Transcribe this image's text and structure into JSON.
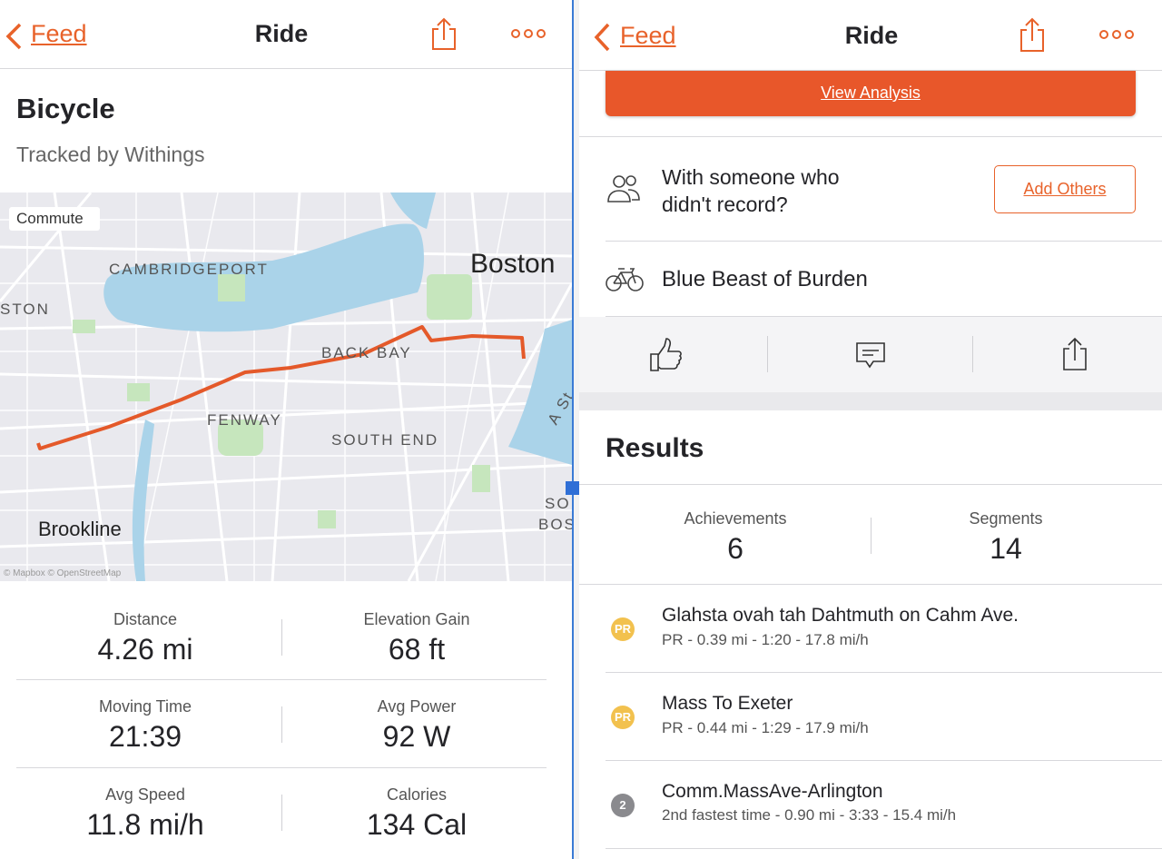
{
  "left": {
    "header": {
      "back": "Feed",
      "title": "Ride"
    },
    "activity": {
      "title": "Bicycle",
      "subtitle": "Tracked by Withings"
    },
    "map": {
      "tag": "Commute",
      "labels": [
        "CAMBRIDGEPORT",
        "Boston",
        "STON",
        "BACK BAY",
        "FENWAY",
        "SOUTH END",
        "Brookline",
        "SO",
        "BOS",
        "A St"
      ],
      "attribution": "© Mapbox © OpenStreetMap"
    },
    "stats": [
      {
        "label": "Distance",
        "value": "4.26 mi"
      },
      {
        "label": "Elevation Gain",
        "value": "68 ft"
      },
      {
        "label": "Moving Time",
        "value": "21:39"
      },
      {
        "label": "Avg Power",
        "value": "92 W"
      },
      {
        "label": "Avg Speed",
        "value": "11.8 mi/h"
      },
      {
        "label": "Calories",
        "value": "134 Cal"
      }
    ]
  },
  "right": {
    "header": {
      "back": "Feed",
      "title": "Ride"
    },
    "analysis_button": "View Analysis",
    "others": {
      "lines": [
        "With someone who",
        "didn't record?"
      ],
      "button": "Add Others"
    },
    "gear": "Blue Beast of Burden",
    "results": {
      "title": "Results",
      "summary": [
        {
          "label": "Achievements",
          "value": "6"
        },
        {
          "label": "Segments",
          "value": "14"
        }
      ],
      "segments": [
        {
          "badge": "PR",
          "name": "Glahsta ovah tah Dahtmuth on Cahm Ave.",
          "detail": "PR - 0.39 mi - 1:20 - 17.8 mi/h"
        },
        {
          "badge": "PR",
          "name": "Mass To Exeter",
          "detail": "PR - 0.44 mi - 1:29 - 17.9 mi/h"
        },
        {
          "badge": "2",
          "name": "Comm.MassAve-Arlington",
          "detail": "2nd fastest time - 0.90 mi - 3:33 - 15.4 mi/h"
        }
      ]
    }
  }
}
